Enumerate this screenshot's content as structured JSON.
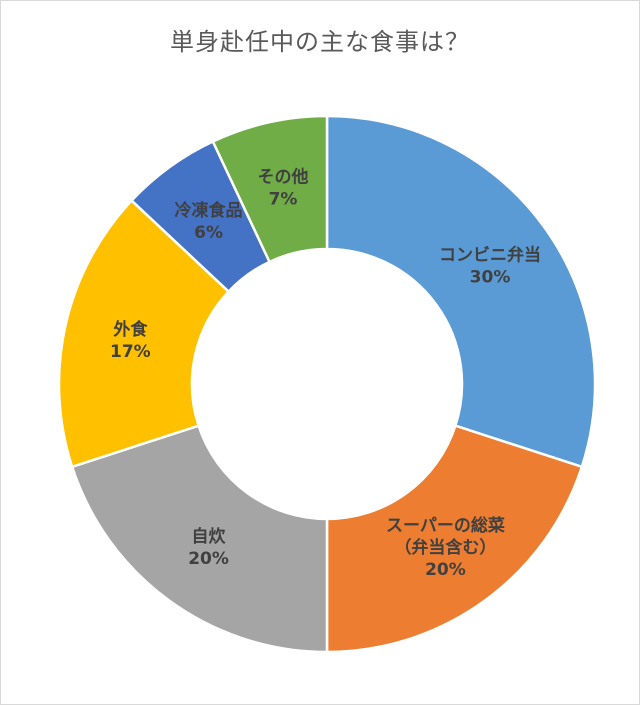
{
  "chart_data": {
    "type": "pie",
    "title": "単身赴任中の主な食事は？",
    "categories": [
      "コンビニ弁当",
      "スーパーの総菜（弁当含む）",
      "自炊",
      "外食",
      "冷凍食品",
      "その他"
    ],
    "values": [
      30,
      20,
      20,
      17,
      6,
      7
    ],
    "labels": [
      {
        "lines": [
          "コンビニ弁当",
          "30%"
        ]
      },
      {
        "lines": [
          "スーパーの総菜",
          "（弁当含む）",
          "20%"
        ]
      },
      {
        "lines": [
          "自炊",
          "20%"
        ]
      },
      {
        "lines": [
          "外食",
          "17%"
        ]
      },
      {
        "lines": [
          "冷凍食品",
          "6%"
        ]
      },
      {
        "lines": [
          "その他",
          "7%"
        ]
      }
    ],
    "colors": [
      "#5b9bd5",
      "#ed7d31",
      "#a5a5a5",
      "#ffc000",
      "#4472c4",
      "#70ad47"
    ],
    "legend": "none",
    "donut": true
  }
}
